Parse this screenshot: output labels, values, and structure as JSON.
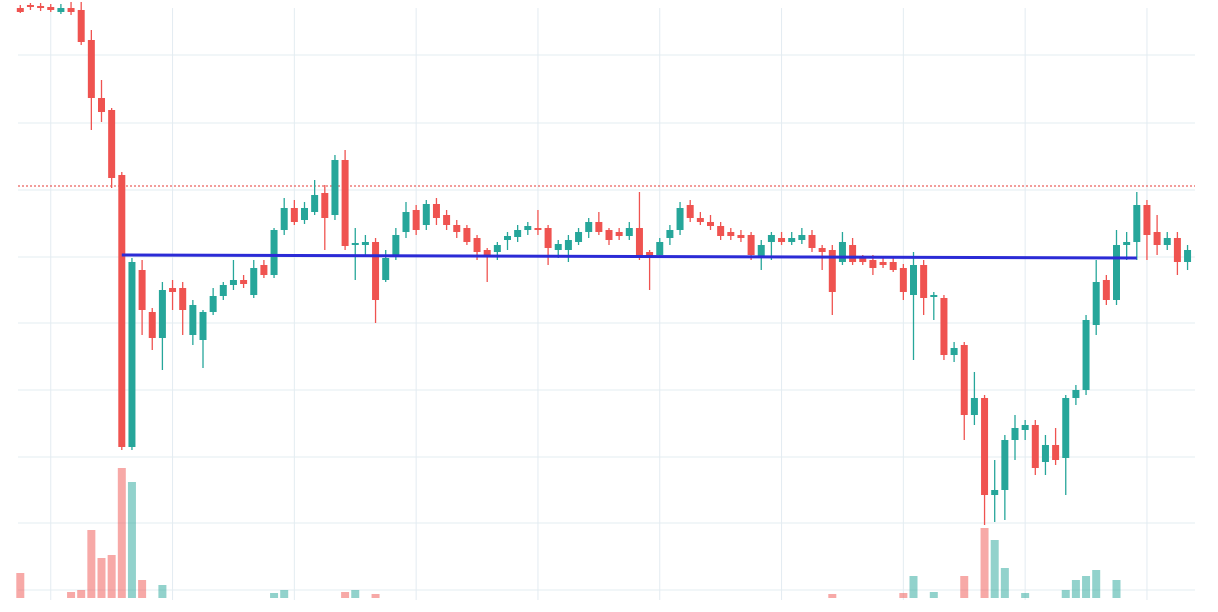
{
  "chart_data": {
    "type": "candlestick",
    "x": [
      0,
      1,
      2,
      3,
      4,
      5,
      6,
      7,
      8,
      9,
      10,
      11,
      12,
      13,
      14,
      15,
      16,
      17,
      18,
      19,
      20,
      21,
      22,
      23,
      24,
      25,
      26,
      27,
      28,
      29,
      30,
      31,
      32,
      33,
      34,
      35,
      36,
      37,
      38,
      39,
      40,
      41,
      42,
      43,
      44,
      45,
      46,
      47,
      48,
      49,
      50,
      51,
      52,
      53,
      54,
      55,
      56,
      57,
      58,
      59,
      60,
      61,
      62,
      63,
      64,
      65,
      66,
      67,
      68,
      69,
      70,
      71,
      72,
      73,
      74,
      75,
      76,
      77,
      78,
      79,
      80,
      81,
      82,
      83,
      84,
      85,
      86,
      87,
      88,
      89,
      90,
      91,
      92,
      93,
      94,
      95,
      96,
      97,
      98,
      99,
      100,
      101,
      102,
      103,
      104,
      105,
      106,
      107,
      108,
      109,
      110,
      111,
      112,
      113,
      114,
      115
    ],
    "open": [
      592,
      595,
      594,
      593,
      588,
      592,
      590,
      560,
      502,
      490,
      425,
      153,
      330,
      288,
      262,
      312,
      312,
      265,
      260,
      288,
      304,
      315,
      320,
      305,
      335,
      325,
      370,
      392,
      380,
      388,
      407,
      385,
      440,
      355,
      355,
      358,
      320,
      345,
      368,
      390,
      375,
      396,
      385,
      375,
      372,
      362,
      350,
      348,
      360,
      363,
      370,
      372,
      372,
      350,
      350,
      358,
      368,
      378,
      370,
      368,
      364,
      372,
      348,
      345,
      362,
      370,
      395,
      382,
      378,
      374,
      368,
      365,
      365,
      342,
      358,
      362,
      358,
      360,
      365,
      352,
      350,
      338,
      355,
      342,
      340,
      338,
      338,
      332,
      305,
      335,
      303,
      302,
      245,
      255,
      185,
      202,
      105,
      110,
      160,
      170,
      175,
      138,
      155,
      142,
      202,
      210,
      275,
      320,
      300,
      355,
      358,
      395,
      368,
      355,
      362,
      338
    ],
    "high": [
      595,
      597,
      597,
      596,
      596,
      598,
      598,
      570,
      520,
      492,
      428,
      342,
      340,
      292,
      318,
      320,
      318,
      300,
      290,
      312,
      318,
      340,
      325,
      340,
      340,
      372,
      402,
      400,
      398,
      420,
      415,
      445,
      450,
      372,
      365,
      362,
      350,
      372,
      398,
      395,
      400,
      402,
      390,
      380,
      375,
      365,
      352,
      358,
      368,
      375,
      378,
      390,
      375,
      360,
      365,
      372,
      382,
      388,
      372,
      372,
      378,
      408,
      350,
      362,
      375,
      398,
      400,
      388,
      385,
      378,
      372,
      370,
      368,
      360,
      368,
      368,
      368,
      372,
      370,
      355,
      355,
      368,
      362,
      345,
      345,
      342,
      342,
      336,
      348,
      340,
      308,
      305,
      258,
      258,
      228,
      205,
      140,
      165,
      185,
      180,
      180,
      165,
      172,
      205,
      215,
      285,
      340,
      325,
      370,
      368,
      408,
      400,
      385,
      368,
      368,
      355
    ],
    "low": [
      587,
      590,
      589,
      588,
      586,
      585,
      555,
      470,
      478,
      412,
      150,
      150,
      265,
      250,
      230,
      290,
      265,
      255,
      232,
      285,
      300,
      310,
      312,
      302,
      322,
      322,
      365,
      375,
      376,
      385,
      350,
      380,
      350,
      320,
      345,
      277,
      318,
      340,
      362,
      365,
      370,
      375,
      370,
      362,
      355,
      340,
      318,
      340,
      350,
      358,
      365,
      365,
      335,
      342,
      338,
      355,
      362,
      365,
      355,
      360,
      360,
      340,
      310,
      342,
      355,
      365,
      378,
      375,
      370,
      360,
      360,
      358,
      340,
      330,
      340,
      355,
      355,
      356,
      348,
      330,
      285,
      335,
      335,
      335,
      325,
      332,
      328,
      300,
      240,
      285,
      280,
      240,
      238,
      160,
      175,
      75,
      78,
      80,
      140,
      160,
      125,
      125,
      135,
      105,
      195,
      205,
      265,
      295,
      295,
      340,
      340,
      340,
      345,
      350,
      325,
      330
    ],
    "close": [
      588,
      593,
      592,
      590,
      592,
      588,
      558,
      502,
      488,
      422,
      153,
      338,
      290,
      262,
      310,
      308,
      290,
      295,
      288,
      304,
      315,
      320,
      316,
      332,
      325,
      370,
      392,
      378,
      392,
      405,
      382,
      440,
      354,
      357,
      358,
      300,
      342,
      365,
      388,
      370,
      396,
      382,
      375,
      368,
      358,
      348,
      345,
      355,
      364,
      370,
      374,
      370,
      352,
      356,
      360,
      368,
      378,
      368,
      360,
      364,
      372,
      345,
      342,
      358,
      370,
      392,
      382,
      378,
      374,
      364,
      364,
      362,
      345,
      355,
      365,
      358,
      362,
      365,
      352,
      348,
      308,
      358,
      338,
      338,
      332,
      335,
      330,
      308,
      335,
      302,
      305,
      245,
      252,
      185,
      202,
      105,
      110,
      160,
      172,
      175,
      132,
      155,
      140,
      202,
      210,
      280,
      318,
      300,
      355,
      358,
      395,
      365,
      355,
      362,
      338,
      350
    ],
    "volume": [
      25,
      0,
      0,
      0,
      0,
      6,
      8,
      68,
      40,
      43,
      130,
      116,
      18,
      0,
      13,
      0,
      0,
      0,
      0,
      0,
      0,
      0,
      0,
      0,
      0,
      5,
      8,
      0,
      0,
      0,
      0,
      0,
      6,
      8,
      0,
      4,
      0,
      0,
      0,
      0,
      0,
      0,
      0,
      0,
      0,
      0,
      0,
      0,
      0,
      0,
      0,
      0,
      0,
      0,
      0,
      0,
      0,
      0,
      0,
      0,
      0,
      0,
      0,
      0,
      0,
      0,
      0,
      0,
      0,
      0,
      0,
      0,
      0,
      0,
      0,
      0,
      0,
      0,
      0,
      0,
      4,
      0,
      0,
      0,
      0,
      0,
      0,
      5,
      22,
      0,
      6,
      0,
      0,
      22,
      0,
      70,
      58,
      30,
      0,
      5,
      0,
      0,
      0,
      8,
      18,
      22,
      28,
      0,
      18,
      0,
      0,
      0,
      0,
      0,
      0,
      0
    ],
    "up_color": "#26a69a",
    "down_color": "#ef5350",
    "xlim": [
      -2,
      118
    ],
    "ylim": [
      0,
      600
    ],
    "vlim": [
      0,
      130
    ],
    "xticks": [
      3,
      15,
      27,
      39,
      51,
      63,
      75,
      87,
      99,
      111
    ],
    "yticks": [
      10,
      77,
      143,
      210,
      277,
      343,
      410,
      477,
      545
    ],
    "grid": true,
    "level": {
      "x": [
        10,
        110
      ],
      "y": [
        345,
        342
      ],
      "color": "#2b2bd6"
    },
    "price_line": {
      "value": 414,
      "color": "#e53935"
    }
  }
}
